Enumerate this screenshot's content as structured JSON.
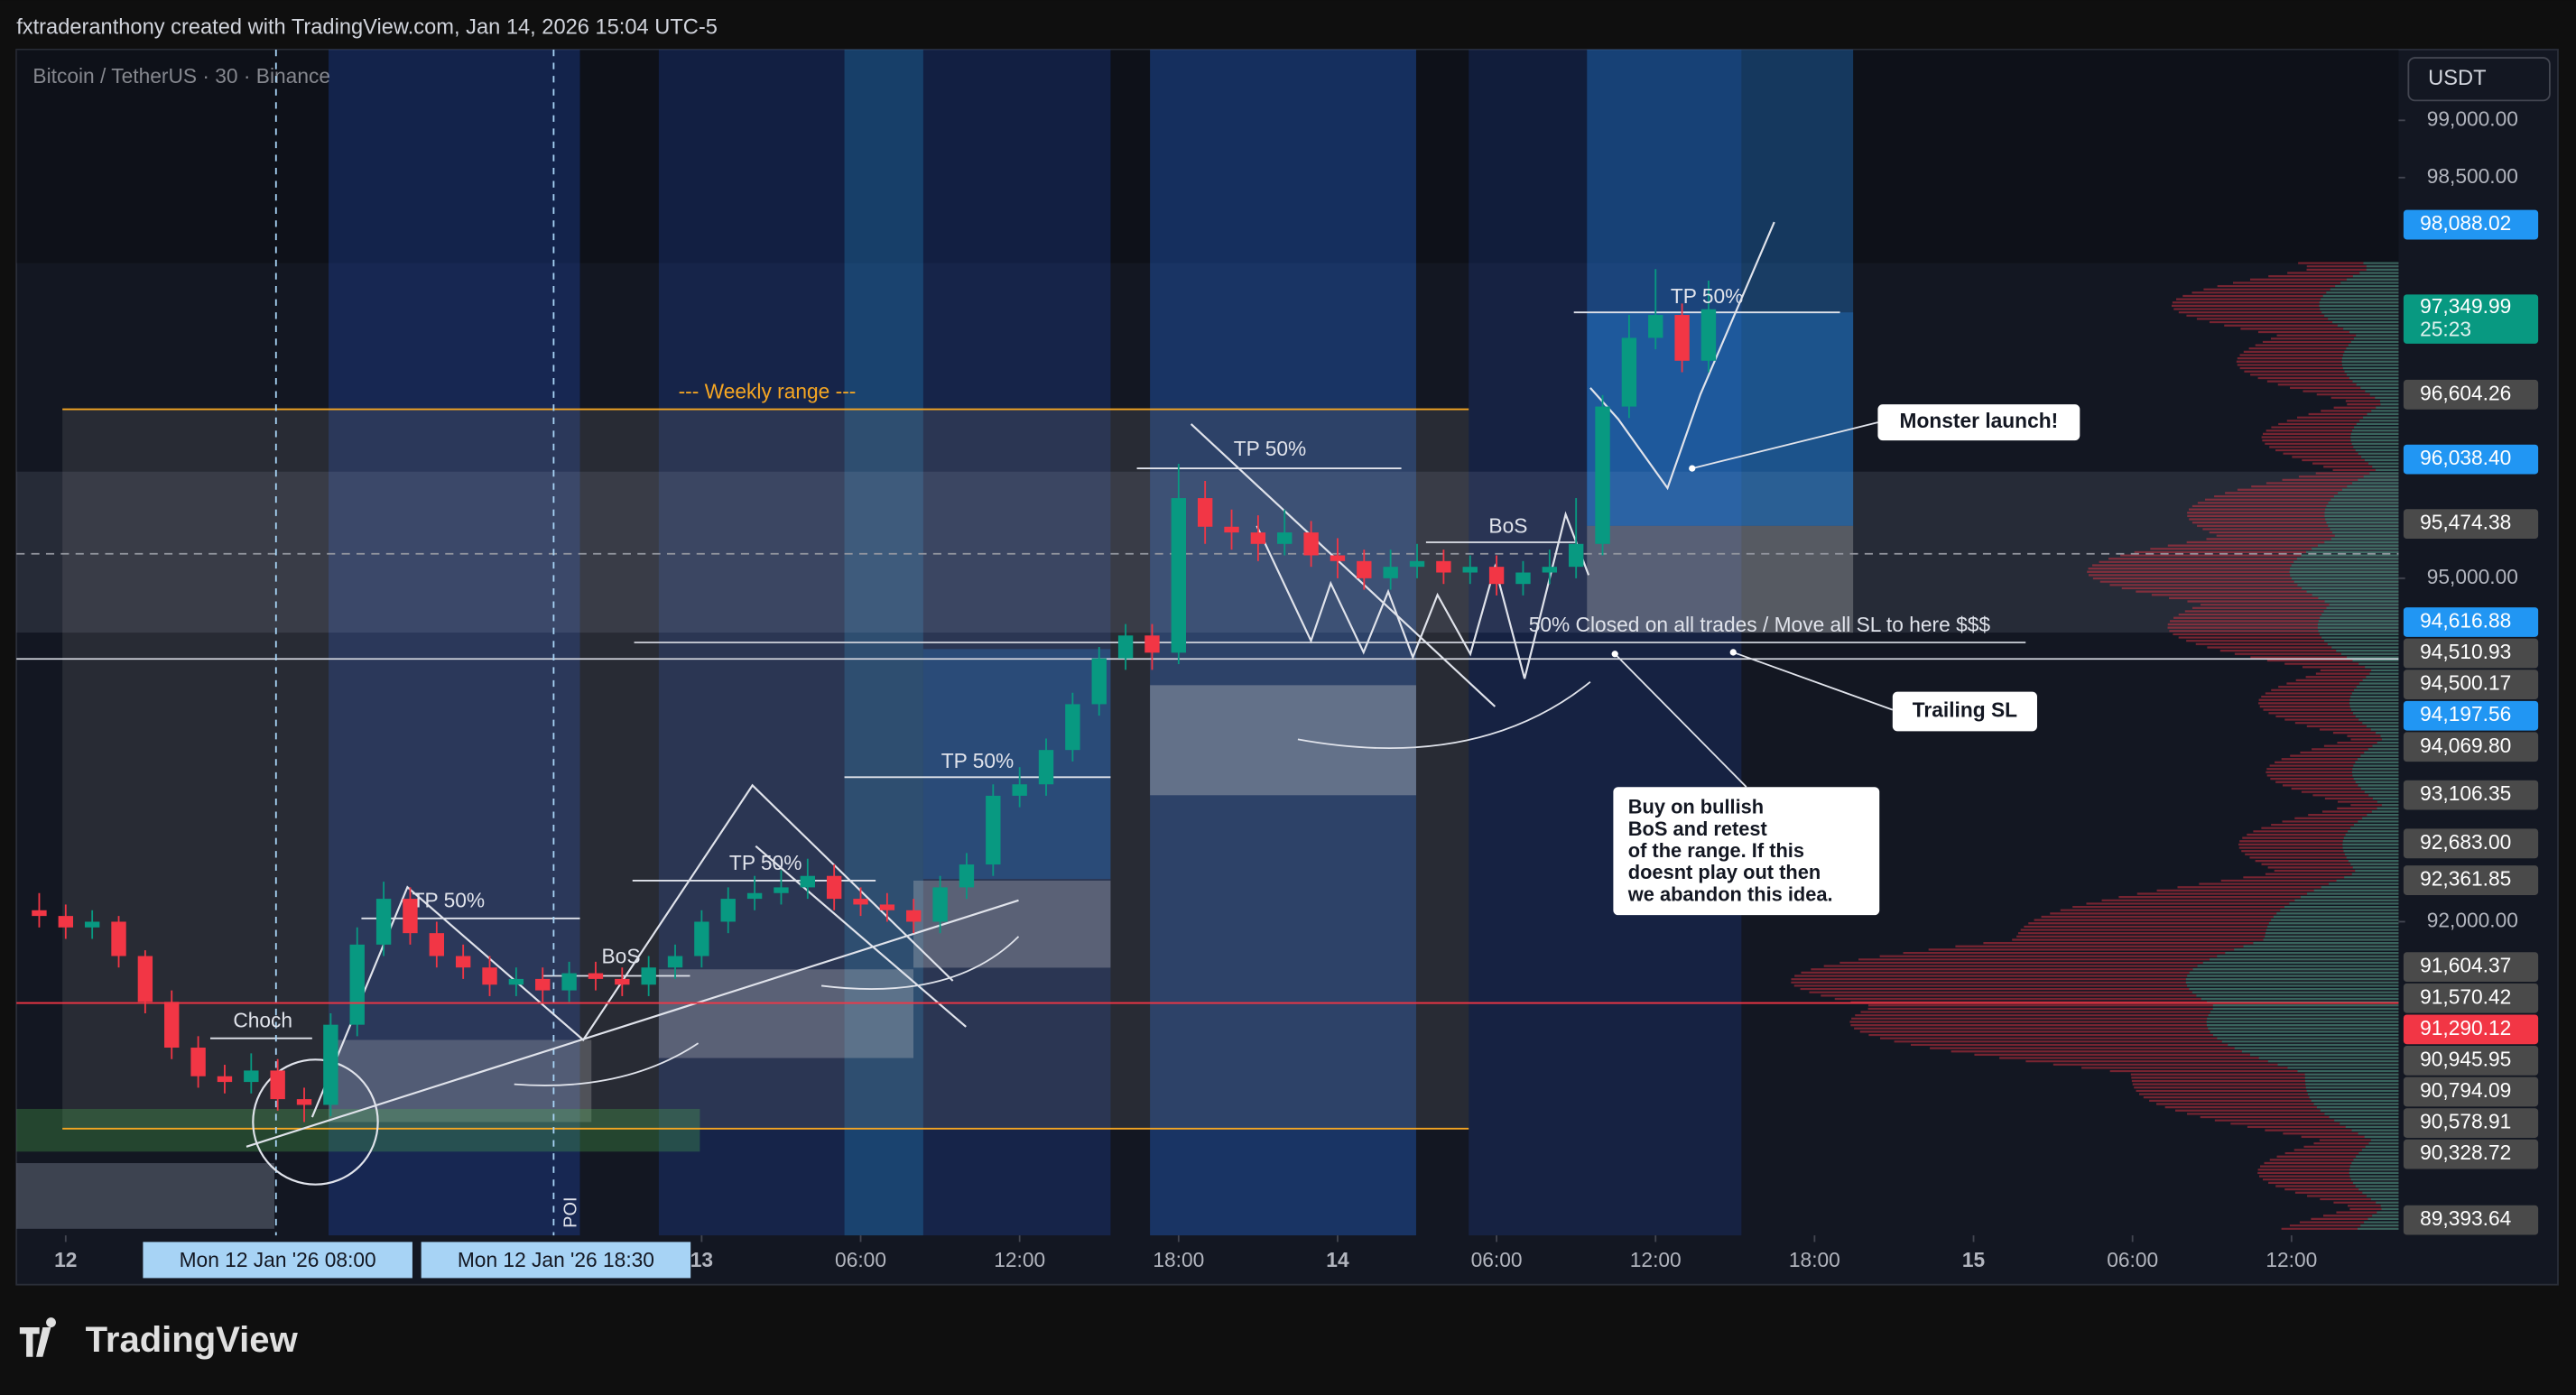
{
  "header": {
    "credit": "fxtraderanthony created with TradingView.com, Jan 14, 2026 15:04 UTC-5",
    "logo": "TradingView"
  },
  "chart_data": {
    "type": "candlestick",
    "title": "Bitcoin / TetherUS · 30 · Binance",
    "currency": "USDT",
    "x": [
      -1,
      0,
      1,
      2,
      3,
      4,
      5,
      6,
      7,
      8,
      9,
      10,
      11,
      12,
      13,
      14,
      15,
      16,
      17,
      18,
      19,
      20,
      21,
      22,
      23,
      24,
      25,
      26,
      27,
      28,
      29,
      30,
      31,
      32,
      33,
      34,
      35,
      36,
      37,
      38,
      39,
      40,
      41,
      42,
      43,
      44,
      45,
      46,
      47,
      48,
      49,
      50,
      51,
      52,
      53,
      54,
      55,
      56,
      57,
      58,
      59,
      60,
      61,
      62
    ],
    "open": [
      92100,
      92050,
      91950,
      92000,
      91700,
      91300,
      90900,
      90650,
      90600,
      90700,
      90450,
      90400,
      91100,
      91800,
      92200,
      91900,
      91700,
      91600,
      91450,
      91500,
      91400,
      91550,
      91500,
      91450,
      91600,
      91700,
      92000,
      92200,
      92250,
      92300,
      92400,
      92200,
      92150,
      92100,
      92000,
      92300,
      92500,
      93100,
      93200,
      93500,
      93900,
      94300,
      94500,
      94350,
      95700,
      95450,
      95400,
      95300,
      95400,
      95200,
      95150,
      95000,
      95100,
      95150,
      95050,
      95100,
      94950,
      95050,
      95100,
      95300,
      96500,
      97100,
      97300,
      96900
    ],
    "high": [
      92250,
      92150,
      92100,
      92050,
      91750,
      91400,
      91000,
      90750,
      90850,
      90800,
      90550,
      91200,
      91950,
      92350,
      92300,
      92000,
      91800,
      91700,
      91600,
      91600,
      91650,
      91650,
      91600,
      91700,
      91800,
      92100,
      92300,
      92400,
      92450,
      92550,
      92500,
      92300,
      92250,
      92200,
      92400,
      92600,
      93200,
      93350,
      93600,
      94000,
      94400,
      94600,
      94600,
      96000,
      95850,
      95600,
      95550,
      95600,
      95500,
      95350,
      95250,
      95250,
      95300,
      95250,
      95200,
      95200,
      95150,
      95250,
      95700,
      96600,
      97300,
      97700,
      97400,
      97600
    ],
    "low": [
      91950,
      91850,
      91850,
      91600,
      91200,
      90800,
      90550,
      90500,
      90500,
      90350,
      90250,
      90300,
      91000,
      91700,
      91800,
      91600,
      91500,
      91350,
      91350,
      91300,
      91300,
      91400,
      91350,
      91350,
      91500,
      91600,
      91900,
      92100,
      92150,
      92200,
      92100,
      92050,
      92000,
      91900,
      91900,
      92200,
      92400,
      93000,
      93100,
      93400,
      93800,
      94200,
      94200,
      94250,
      95300,
      95250,
      95150,
      95200,
      95100,
      95000,
      94900,
      94900,
      95000,
      94950,
      94950,
      94850,
      94850,
      94950,
      95000,
      95200,
      96400,
      97000,
      96800,
      96800
    ],
    "close": [
      92050,
      91950,
      92000,
      91700,
      91300,
      90900,
      90650,
      90600,
      90700,
      90450,
      90400,
      91100,
      91800,
      92200,
      91900,
      91700,
      91600,
      91450,
      91500,
      91400,
      91550,
      91500,
      91450,
      91600,
      91700,
      92000,
      92200,
      92250,
      92300,
      92400,
      92200,
      92150,
      92100,
      92000,
      92300,
      92500,
      93100,
      93200,
      93500,
      93900,
      94300,
      94500,
      94350,
      95700,
      95450,
      95400,
      95300,
      95400,
      95200,
      95150,
      95000,
      95100,
      95150,
      95050,
      95100,
      94950,
      95050,
      95100,
      95300,
      96500,
      97100,
      97300,
      96900,
      97350
    ],
    "up_color": "#089981",
    "down_color": "#f23645",
    "xlim": [
      -1.86,
      88.04
    ],
    "xticks": [
      {
        "value": 0,
        "label": "12"
      },
      {
        "value": 24,
        "label": "13"
      },
      {
        "value": 30,
        "label": "06:00"
      },
      {
        "value": 36,
        "label": "12:00"
      },
      {
        "value": 42,
        "label": "18:00"
      },
      {
        "value": 48,
        "label": "14"
      },
      {
        "value": 54,
        "label": "06:00"
      },
      {
        "value": 60,
        "label": "12:00"
      },
      {
        "value": 66,
        "label": "18:00"
      },
      {
        "value": 72,
        "label": "15"
      },
      {
        "value": 78,
        "label": "06:00"
      },
      {
        "value": 84,
        "label": "12:00"
      }
    ],
    "ylim": [
      89260,
      99618
    ],
    "yticks": [
      {
        "value": 99000,
        "label": "99,000.00"
      },
      {
        "value": 98500,
        "label": "98,500.00"
      },
      {
        "value": 95000,
        "label": "95,000.00"
      },
      {
        "value": 92000,
        "label": "92,000.00"
      }
    ],
    "crosshair_x": [
      {
        "value": 8,
        "label": "Mon 12 Jan '26   08:00"
      },
      {
        "value": 18.5,
        "label": "Mon 12 Jan '26   18:30"
      }
    ],
    "price_labels": [
      {
        "value": 98088.02,
        "label": "98,088.02",
        "color": "#2196f3"
      },
      {
        "value": 97349.99,
        "label": "97,349.99",
        "color": "#089981"
      },
      {
        "value": 96604.26,
        "label": "96,604.26",
        "color": "#4a4a4a"
      },
      {
        "value": 96038.4,
        "label": "96,038.40",
        "color": "#2196f3"
      },
      {
        "value": 95474.38,
        "label": "95,474.38",
        "color": "#4a4a4a"
      },
      {
        "value": 94616.88,
        "label": "94,616.88",
        "color": "#2196f3"
      },
      {
        "value": 94510.93,
        "label": "94,510.93",
        "color": "#4a4a4a"
      },
      {
        "value": 94500.17,
        "label": "94,500.17",
        "color": "#4a4a4a"
      },
      {
        "value": 94197.56,
        "label": "94,197.56",
        "color": "#2196f3"
      },
      {
        "value": 94069.8,
        "label": "94,069.80",
        "color": "#4a4a4a"
      },
      {
        "value": 93106.35,
        "label": "93,106.35",
        "color": "#4a4a4a"
      },
      {
        "value": 92683,
        "label": "92,683.00",
        "color": "#4a4a4a"
      },
      {
        "value": 92361.85,
        "label": "92,361.85",
        "color": "#4a4a4a"
      },
      {
        "value": 91604.37,
        "label": "91,604.37",
        "color": "#4a4a4a"
      },
      {
        "value": 91570.42,
        "label": "91,570.42",
        "color": "#4a4a4a"
      },
      {
        "value": 91290.12,
        "label": "91,290.12",
        "color": "#f23645",
        "line": true
      },
      {
        "value": 90945.95,
        "label": "90,945.95",
        "color": "#4a4a4a"
      },
      {
        "value": 90794.09,
        "label": "90,794.09",
        "color": "#4a4a4a"
      },
      {
        "value": 90578.91,
        "label": "90,578.91",
        "color": "#4a4a4a"
      },
      {
        "value": 90328.72,
        "label": "90,328.72",
        "color": "#4a4a4a"
      },
      {
        "value": 89393.64,
        "label": "89,393.64",
        "color": "#4a4a4a"
      }
    ],
    "countdown": "25:23",
    "annotations": [
      "Choch",
      "TP 50%",
      "TP 50%",
      "TP 50%",
      "TP 50%",
      "TP 50%",
      "BoS",
      "BoS",
      "--- Weekly range ---",
      "50% Closed on all trades / Move all SL to here $$$",
      "POI"
    ],
    "callouts": [
      {
        "text": "Monster launch!"
      },
      {
        "text": "Trailing SL"
      },
      {
        "lines": [
          "Buy on bullish",
          "BoS and retest",
          "of the range. If this",
          "doesnt play out then",
          "we abandon this idea."
        ]
      }
    ]
  }
}
